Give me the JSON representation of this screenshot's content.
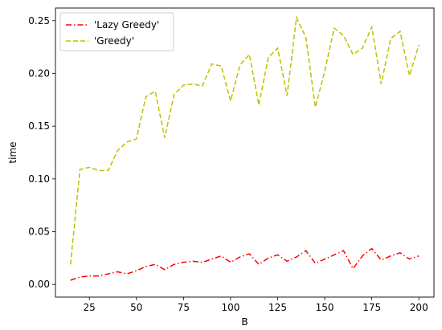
{
  "chart_data": {
    "type": "line",
    "xlabel": "B",
    "ylabel": "time",
    "xlim": [
      7,
      208
    ],
    "ylim": [
      -0.012,
      0.262
    ],
    "xticks": [
      25,
      50,
      75,
      100,
      125,
      150,
      175,
      200
    ],
    "yticks": [
      0.0,
      0.05,
      0.1,
      0.15,
      0.2,
      0.25
    ],
    "xtick_labels": [
      "25",
      "50",
      "75",
      "100",
      "125",
      "150",
      "175",
      "200"
    ],
    "ytick_labels": [
      "0.00",
      "0.05",
      "0.10",
      "0.15",
      "0.20",
      "0.25"
    ],
    "grid": false,
    "legend_position": "top-left",
    "x": [
      15,
      20,
      25,
      30,
      35,
      40,
      45,
      50,
      55,
      60,
      65,
      70,
      75,
      80,
      85,
      90,
      95,
      100,
      105,
      110,
      115,
      120,
      125,
      130,
      135,
      140,
      145,
      150,
      155,
      160,
      165,
      170,
      175,
      180,
      185,
      190,
      195,
      200
    ],
    "series": [
      {
        "name": "'Lazy Greedy'",
        "color": "#ff0000",
        "dash": "dashdot",
        "values": [
          0.004,
          0.007,
          0.008,
          0.008,
          0.01,
          0.012,
          0.01,
          0.013,
          0.017,
          0.019,
          0.014,
          0.019,
          0.021,
          0.022,
          0.021,
          0.024,
          0.027,
          0.021,
          0.026,
          0.029,
          0.019,
          0.025,
          0.028,
          0.022,
          0.026,
          0.032,
          0.02,
          0.024,
          0.028,
          0.032,
          0.015,
          0.027,
          0.034,
          0.023,
          0.027,
          0.03,
          0.024,
          0.027
        ]
      },
      {
        "name": "'Greedy'",
        "color": "#bfbf00",
        "dash": "dashed",
        "values": [
          0.019,
          0.109,
          0.111,
          0.108,
          0.108,
          0.127,
          0.135,
          0.138,
          0.178,
          0.183,
          0.139,
          0.18,
          0.189,
          0.19,
          0.188,
          0.209,
          0.207,
          0.174,
          0.208,
          0.218,
          0.17,
          0.215,
          0.224,
          0.179,
          0.253,
          0.234,
          0.168,
          0.202,
          0.243,
          0.236,
          0.218,
          0.224,
          0.244,
          0.19,
          0.233,
          0.24,
          0.198,
          0.227
        ]
      }
    ]
  }
}
